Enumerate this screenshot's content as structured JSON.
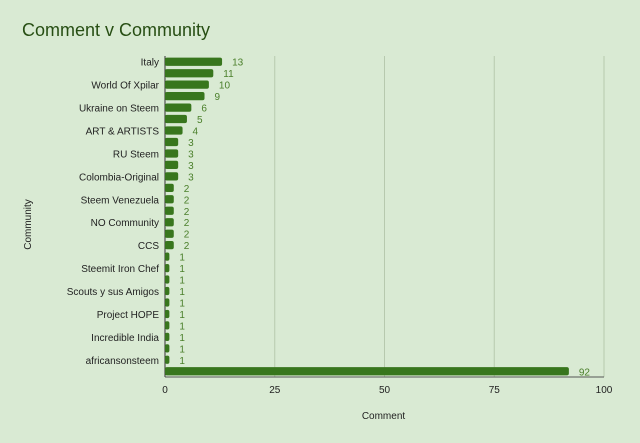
{
  "chart_data": {
    "type": "bar",
    "orientation": "horizontal",
    "title": "Comment v Community",
    "xlabel": "Comment",
    "ylabel": "Community",
    "xlim": [
      0,
      100
    ],
    "xticks": [
      0,
      25,
      50,
      75,
      100
    ],
    "grid": true,
    "legend": "none",
    "categories": [
      "Italy",
      "",
      "World Of Xpilar",
      "",
      "Ukraine on Steem",
      "",
      "ART & ARTISTS",
      "",
      "RU Steem",
      "",
      "Colombia-Original",
      "",
      "Steem Venezuela",
      "",
      "NO Community",
      "",
      "CCS",
      "",
      "Steemit Iron Chef",
      "",
      "Scouts y sus Amigos",
      "",
      "Project HOPE",
      "",
      "Incredible India",
      "",
      "africansonsteem",
      ""
    ],
    "values": [
      13,
      11,
      10,
      9,
      6,
      5,
      4,
      3,
      3,
      3,
      3,
      2,
      2,
      2,
      2,
      2,
      2,
      1,
      1,
      1,
      1,
      1,
      1,
      1,
      1,
      1,
      1,
      92
    ],
    "colors": {
      "bar": "#38761d",
      "data_label": "#4a7f2a",
      "background": "#d9ead3",
      "grid": "#b7c9ae",
      "title": "#274e13"
    }
  }
}
